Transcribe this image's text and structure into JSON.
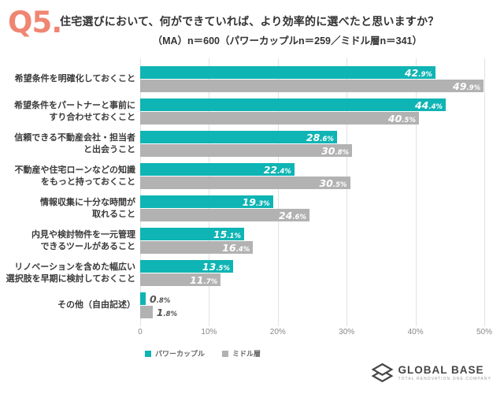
{
  "header": {
    "q_label": "Q5.",
    "q_color": "#ef8672",
    "title": "住宅選びにおいて、何ができていれば、より効率的に選べたと思いますか？",
    "subtitle": "（MA）n＝600（パワーカップルn＝259／ミドル層n＝341）"
  },
  "chart_data": {
    "type": "bar",
    "orientation": "horizontal",
    "title": "住宅選びにおいて、何ができていれば、より効率的に選べたと思いますか？",
    "subtitle": "（MA）n＝600（パワーカップルn＝259／ミドル層n＝341）",
    "categories": [
      "希望条件を明確化しておくこと",
      "希望条件をパートナーと事前に\nすり合わせておくこと",
      "信頼できる不動産会社・担当者\nと出会うこと",
      "不動産や住宅ローンなどの知識\nをもっと持っておくこと",
      "情報収集に十分な時間が\n取れること",
      "内見や検討物件を一元管理\nできるツールがあること",
      "リノベーションを含めた幅広い\n選択肢を早期に検討しておくこと",
      "その他（自由記述）"
    ],
    "series": [
      {
        "name": "パワーカップル",
        "n": 259,
        "color": "#0fb4b4",
        "values": [
          42.9,
          44.4,
          28.6,
          22.4,
          19.3,
          15.1,
          13.5,
          0.8
        ]
      },
      {
        "name": "ミドル層",
        "n": 341,
        "color": "#b2b2b2",
        "values": [
          49.9,
          40.5,
          30.8,
          30.5,
          24.6,
          16.4,
          11.7,
          1.8
        ]
      }
    ],
    "xlim": [
      0,
      50
    ],
    "x_ticks": [
      "0",
      "10%",
      "20%",
      "30%",
      "40%",
      "50%"
    ],
    "value_suffix": "%",
    "grid": "vertical",
    "legend_position": "bottom-left",
    "outside_label_color": "#555555"
  },
  "footer": {
    "logo_name": "GLOBAL BASE",
    "logo_tagline": "TOTAL RENOVATION ONE COMPANY",
    "logo_icon": "stacked-diamonds"
  }
}
